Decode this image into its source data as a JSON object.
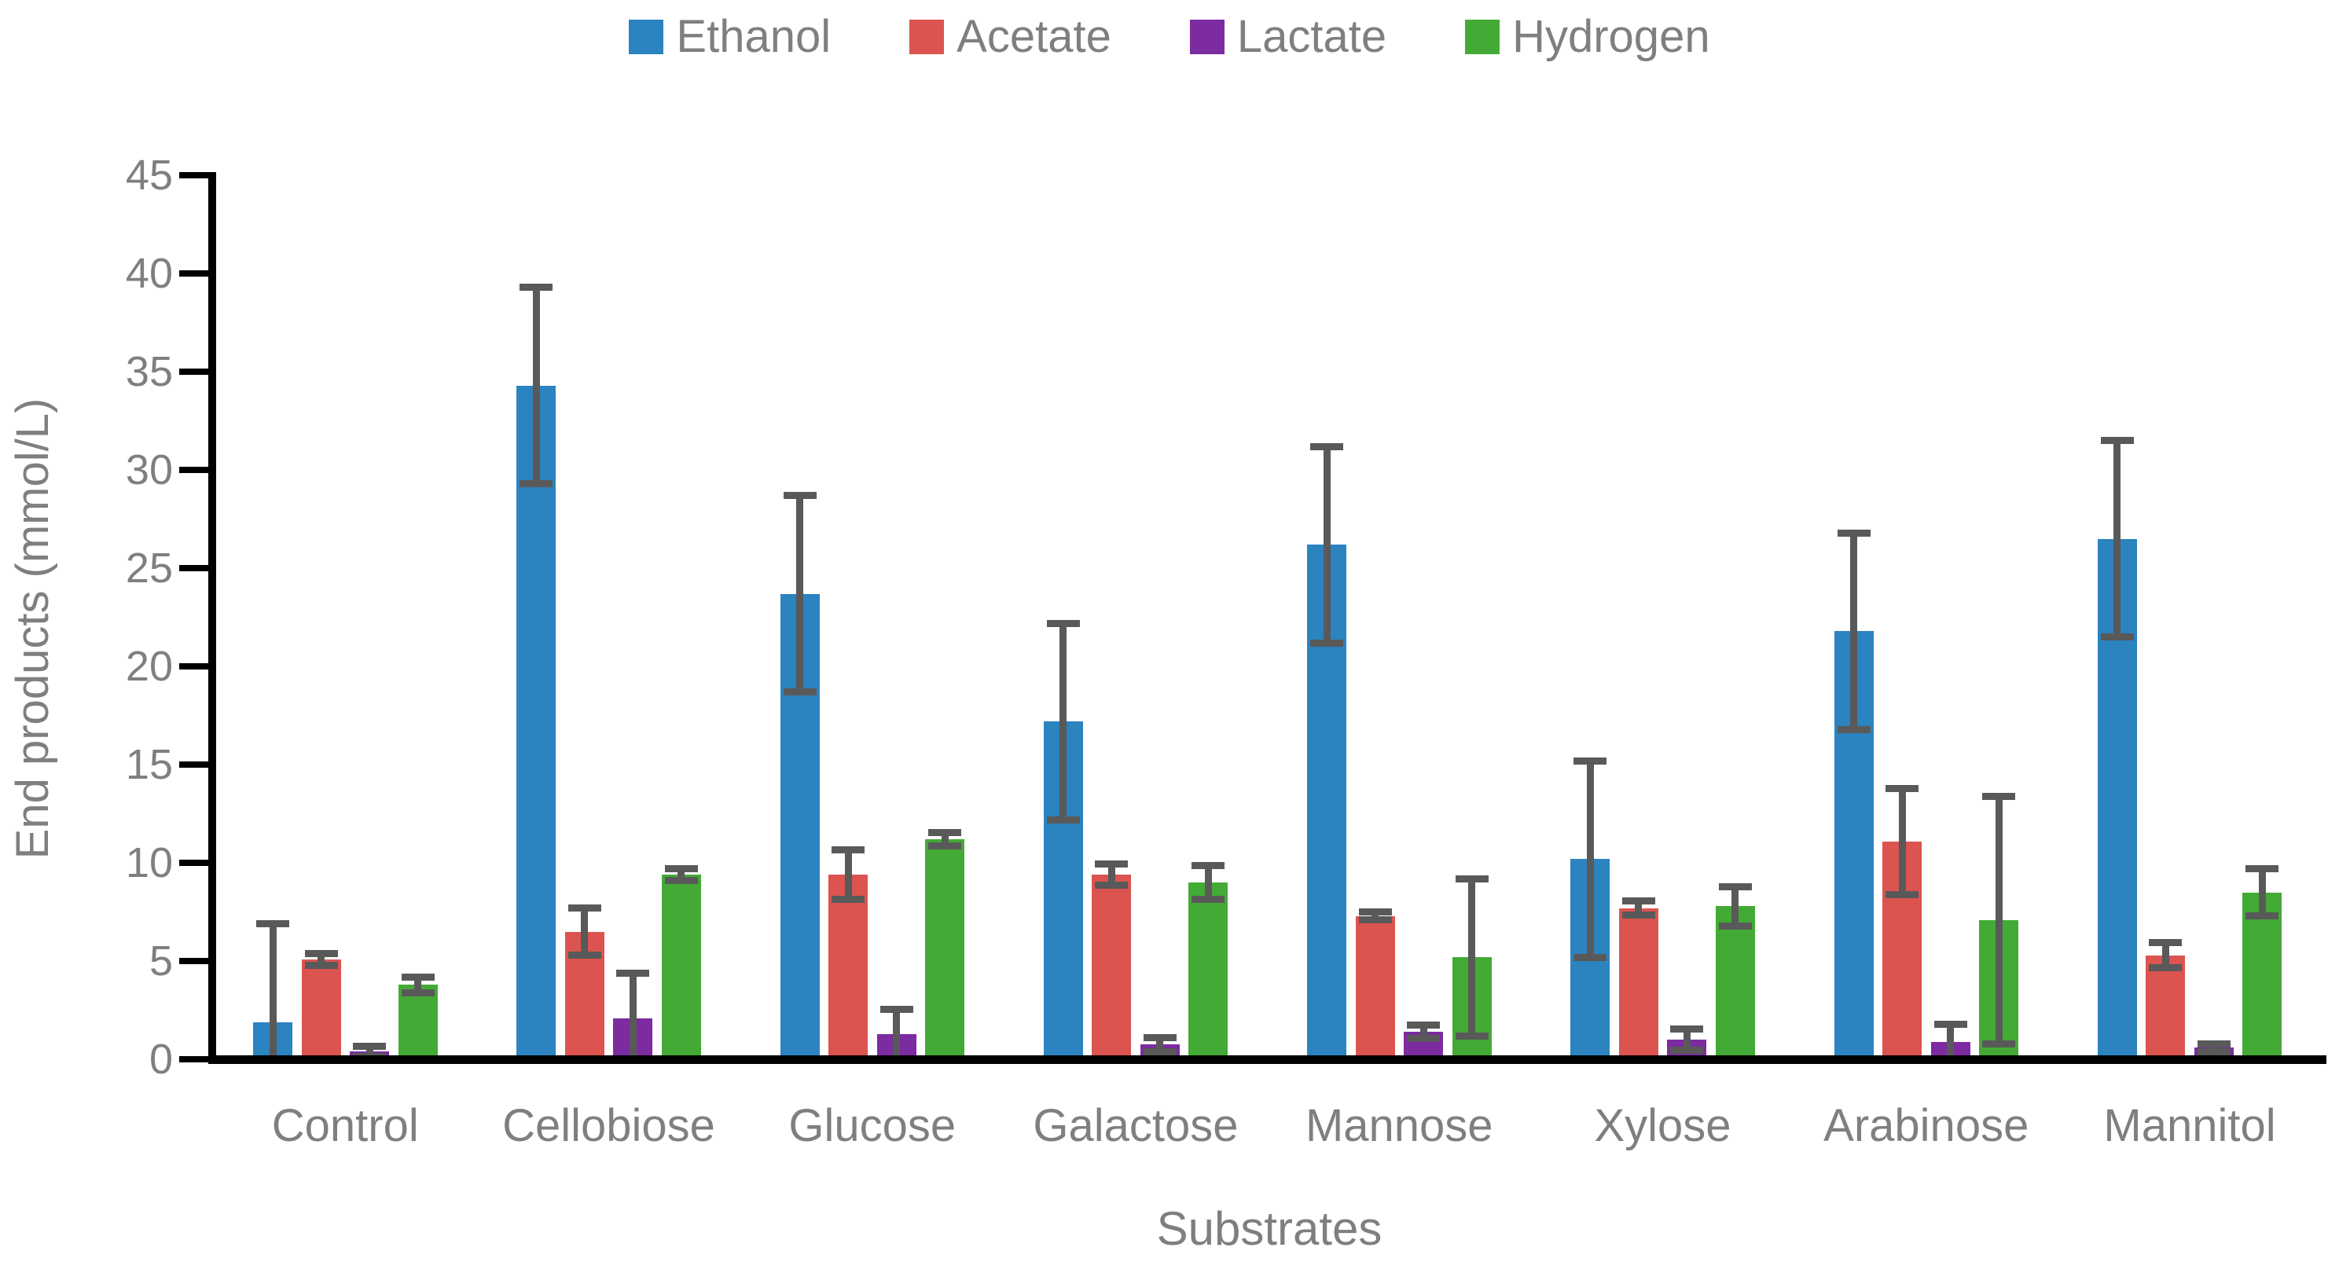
{
  "figure": {
    "background": "#ffffff",
    "text_color": "#7f7f7f",
    "axis_color": "#000000",
    "error_bar_color": "#595959"
  },
  "legend": {
    "position": "top-center",
    "items": [
      {
        "label": "Ethanol",
        "color": "#2b83c0"
      },
      {
        "label": "Acetate",
        "color": "#db5450"
      },
      {
        "label": "Lactate",
        "color": "#7c2ba0"
      },
      {
        "label": "Hydrogen",
        "color": "#43ab35"
      }
    ]
  },
  "chart_data": {
    "type": "bar",
    "title": "",
    "xlabel": "Substrates",
    "ylabel": "End products (mmol/L)",
    "ylim": [
      0,
      45
    ],
    "yticks": [
      0,
      5,
      10,
      15,
      20,
      25,
      30,
      35,
      40,
      45
    ],
    "grid": false,
    "legend_position": "top",
    "error_bars": true,
    "categories": [
      "Control",
      "Cellobiose",
      "Glucose",
      "Galactose",
      "Mannose",
      "Xylose",
      "Arabinose",
      "Mannitol"
    ],
    "series": [
      {
        "name": "Ethanol",
        "color": "#2b83c0",
        "values": [
          1.9,
          34.3,
          23.7,
          17.2,
          26.2,
          10.2,
          21.8,
          26.5
        ],
        "errors": [
          5.0,
          5.0,
          5.0,
          5.0,
          5.0,
          5.0,
          5.0,
          5.0
        ]
      },
      {
        "name": "Acetate",
        "color": "#db5450",
        "values": [
          5.1,
          6.5,
          9.4,
          9.4,
          7.3,
          7.7,
          11.1,
          5.3
        ],
        "errors": [
          0.3,
          1.2,
          1.25,
          0.55,
          0.2,
          0.35,
          2.7,
          0.65
        ]
      },
      {
        "name": "Lactate",
        "color": "#7c2ba0",
        "values": [
          0.4,
          2.1,
          1.3,
          0.75,
          1.4,
          1.0,
          0.9,
          0.6
        ],
        "errors": [
          0.25,
          2.3,
          1.25,
          0.35,
          0.35,
          0.55,
          0.9,
          0.2
        ]
      },
      {
        "name": "Hydrogen",
        "color": "#43ab35",
        "values": [
          3.8,
          9.4,
          11.2,
          9.0,
          5.2,
          7.8,
          7.1,
          8.5
        ],
        "errors": [
          0.4,
          0.3,
          0.35,
          0.85,
          4.0,
          1.0,
          6.3,
          1.2
        ]
      }
    ]
  }
}
